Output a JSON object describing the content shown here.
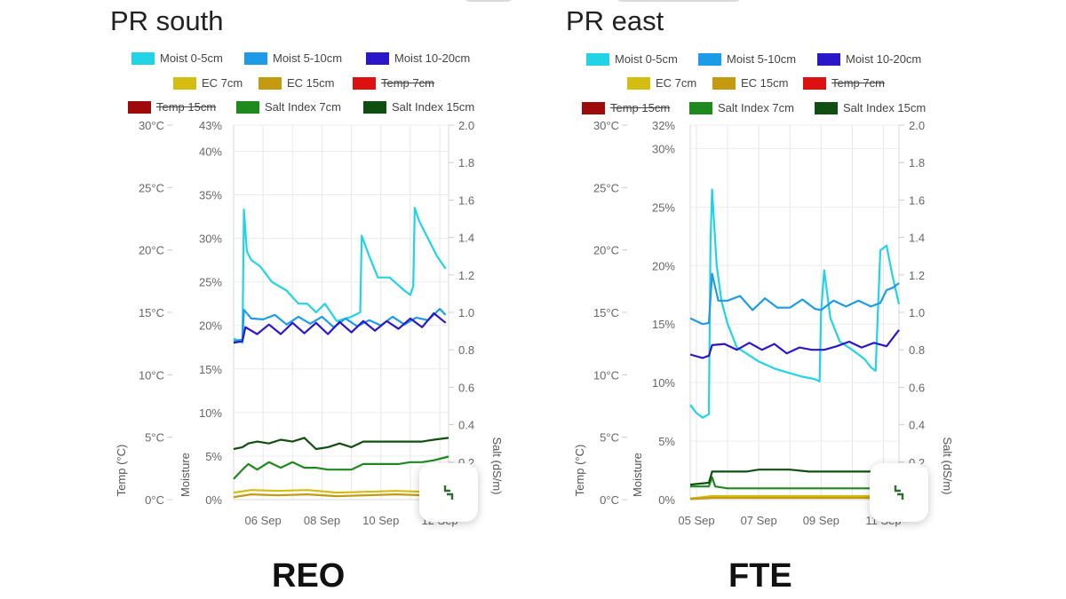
{
  "charts": [
    {
      "title": "PR south",
      "caption": "REO",
      "legend": [
        {
          "label": "Moist 0-5cm",
          "color": "#22d3e6",
          "hidden": false
        },
        {
          "label": "Moist 5-10cm",
          "color": "#1e9be6",
          "hidden": false
        },
        {
          "label": "Moist 10-20cm",
          "color": "#2a18c8",
          "hidden": false
        },
        {
          "label": "EC 7cm",
          "color": "#d4bc10",
          "hidden": false
        },
        {
          "label": "EC 15cm",
          "color": "#c49a10",
          "hidden": false
        },
        {
          "label": "Temp 7cm",
          "color": "#dd1111",
          "hidden": true
        },
        {
          "label": "Temp 15cm",
          "color": "#9e0a0a",
          "hidden": true
        },
        {
          "label": "Salt Index 7cm",
          "color": "#1e8a1e",
          "hidden": false
        },
        {
          "label": "Salt Index 15cm",
          "color": "#0f4f0f",
          "hidden": false
        }
      ],
      "temp_ticks": [
        "30°C",
        "25°C",
        "20°C",
        "15°C",
        "10°C",
        "5°C",
        "0°C"
      ],
      "moist_ticks": [
        "43%",
        "40%",
        "35%",
        "30%",
        "25%",
        "20%",
        "15%",
        "10%",
        "5%",
        "0%"
      ],
      "salt_ticks": [
        "2.0",
        "1.8",
        "1.6",
        "1.4",
        "1.2",
        "1.0",
        "0.8",
        "0.6",
        "0.4",
        "0.2"
      ],
      "x_ticks": [
        "06 Sep",
        "08 Sep",
        "10 Sep",
        "12 Sep"
      ],
      "axis_titles": {
        "temp": "Temp (°C)",
        "moist": "Moisture",
        "salt": "Salt (dS/m)"
      }
    },
    {
      "title": "PR east",
      "caption": "FTE",
      "legend": [
        {
          "label": "Moist 0-5cm",
          "color": "#22d3e6",
          "hidden": false
        },
        {
          "label": "Moist 5-10cm",
          "color": "#1e9be6",
          "hidden": false
        },
        {
          "label": "Moist 10-20cm",
          "color": "#2a18c8",
          "hidden": false
        },
        {
          "label": "EC 7cm",
          "color": "#d4bc10",
          "hidden": false
        },
        {
          "label": "EC 15cm",
          "color": "#c49a10",
          "hidden": false
        },
        {
          "label": "Temp 7cm",
          "color": "#dd1111",
          "hidden": true
        },
        {
          "label": "Temp 15cm",
          "color": "#9e0a0a",
          "hidden": true
        },
        {
          "label": "Salt Index 7cm",
          "color": "#1e8a1e",
          "hidden": false
        },
        {
          "label": "Salt Index 15cm",
          "color": "#0f4f0f",
          "hidden": false
        }
      ],
      "temp_ticks": [
        "30°C",
        "25°C",
        "20°C",
        "15°C",
        "10°C",
        "5°C",
        "0°C"
      ],
      "moist_ticks": [
        "32%",
        "30%",
        "25%",
        "20%",
        "15%",
        "10%",
        "5%",
        "0%"
      ],
      "salt_ticks": [
        "2.0",
        "1.8",
        "1.6",
        "1.4",
        "1.2",
        "1.0",
        "0.8",
        "0.6",
        "0.4",
        "0.2"
      ],
      "x_ticks": [
        "05 Sep",
        "07 Sep",
        "09 Sep",
        "11 Sep"
      ],
      "axis_titles": {
        "temp": "Temp (°C)",
        "moist": "Moisture",
        "salt": "Salt (dS/m)"
      }
    }
  ],
  "chart_data": [
    {
      "type": "line",
      "title": "PR south",
      "y_left_temp": {
        "label": "Temp (°C)",
        "range": [
          0,
          30
        ]
      },
      "y_left_moist": {
        "label": "Moisture",
        "range": [
          0,
          43
        ]
      },
      "y_right": {
        "label": "Salt (dS/m)",
        "range": [
          0,
          2.0
        ]
      },
      "x_range_days": [
        5.0,
        12.3
      ],
      "series": [
        {
          "name": "Moist 0-5cm",
          "axis": "moist",
          "color": "#22d3e6",
          "x": [
            5.0,
            5.3,
            5.35,
            5.45,
            5.6,
            5.9,
            6.3,
            6.8,
            7.2,
            7.5,
            7.8,
            8.1,
            8.5,
            9.0,
            9.3,
            9.35,
            9.6,
            9.9,
            10.3,
            10.8,
            11.0,
            11.1,
            11.15,
            11.3,
            11.6,
            11.9,
            12.2
          ],
          "y": [
            18.5,
            18.0,
            33.3,
            28.5,
            27.5,
            26.8,
            25.0,
            24.0,
            22.5,
            22.5,
            21.5,
            22.5,
            20.5,
            21.0,
            21.5,
            30.3,
            28.0,
            25.5,
            25.5,
            24.0,
            23.5,
            24.5,
            33.5,
            32.0,
            30.0,
            28.0,
            26.5
          ]
        },
        {
          "name": "Moist 5-10cm",
          "axis": "moist",
          "color": "#1e9be6",
          "x": [
            5.0,
            5.3,
            5.35,
            5.6,
            6.0,
            6.4,
            6.8,
            7.2,
            7.6,
            8.0,
            8.4,
            8.8,
            9.2,
            9.6,
            10.0,
            10.4,
            10.8,
            11.2,
            11.6,
            12.0,
            12.2
          ],
          "y": [
            18.2,
            18.4,
            21.8,
            20.8,
            20.7,
            21.2,
            20.1,
            21.0,
            20.2,
            21.0,
            19.8,
            20.8,
            19.9,
            20.6,
            20.0,
            21.0,
            20.1,
            20.9,
            20.6,
            21.9,
            21.2
          ]
        },
        {
          "name": "Moist 10-20cm",
          "axis": "moist",
          "color": "#2a18c8",
          "x": [
            5.0,
            5.3,
            5.4,
            5.8,
            6.2,
            6.6,
            7.0,
            7.4,
            7.8,
            8.2,
            8.6,
            9.0,
            9.4,
            9.8,
            10.2,
            10.6,
            11.0,
            11.4,
            11.8,
            12.2
          ],
          "y": [
            18.0,
            18.2,
            19.8,
            19.0,
            20.1,
            19.0,
            20.3,
            19.1,
            20.3,
            19.0,
            20.4,
            19.2,
            20.5,
            19.4,
            20.5,
            19.6,
            20.8,
            19.8,
            21.4,
            20.3
          ]
        },
        {
          "name": "EC 7cm",
          "axis": "moist",
          "color": "#d4bc10",
          "x": [
            5.0,
            5.6,
            6.5,
            7.5,
            8.5,
            9.5,
            10.5,
            11.5,
            12.3
          ],
          "y": [
            0.8,
            1.1,
            1.0,
            1.1,
            0.8,
            0.9,
            1.0,
            0.9,
            1.1
          ]
        },
        {
          "name": "EC 15cm",
          "axis": "moist",
          "color": "#c49a10",
          "x": [
            5.0,
            5.6,
            6.5,
            7.5,
            8.5,
            9.5,
            10.5,
            11.5,
            12.3
          ],
          "y": [
            0.3,
            0.6,
            0.5,
            0.6,
            0.4,
            0.5,
            0.6,
            0.5,
            0.6
          ]
        },
        {
          "name": "Salt Index 7cm",
          "axis": "salt",
          "color": "#1e8a1e",
          "x": [
            5.0,
            5.3,
            5.5,
            5.8,
            6.2,
            6.6,
            7.0,
            7.4,
            7.8,
            8.2,
            8.6,
            9.0,
            9.4,
            9.8,
            10.2,
            10.6,
            11.0,
            11.4,
            11.8,
            12.3
          ],
          "y": [
            0.11,
            0.16,
            0.19,
            0.16,
            0.2,
            0.17,
            0.2,
            0.17,
            0.17,
            0.16,
            0.16,
            0.16,
            0.19,
            0.19,
            0.19,
            0.19,
            0.2,
            0.2,
            0.21,
            0.23
          ]
        },
        {
          "name": "Salt Index 15cm",
          "axis": "salt",
          "color": "#0f4f0f",
          "x": [
            5.0,
            5.3,
            5.5,
            5.8,
            6.2,
            6.6,
            7.0,
            7.4,
            7.8,
            8.2,
            8.6,
            9.0,
            9.4,
            9.8,
            10.2,
            10.6,
            11.0,
            11.4,
            11.8,
            12.3
          ],
          "y": [
            0.27,
            0.28,
            0.3,
            0.31,
            0.3,
            0.32,
            0.31,
            0.33,
            0.27,
            0.28,
            0.3,
            0.28,
            0.31,
            0.31,
            0.31,
            0.31,
            0.31,
            0.31,
            0.32,
            0.33
          ]
        }
      ],
      "x_ticks": [
        {
          "label": "06 Sep",
          "value": 6.0
        },
        {
          "label": "08 Sep",
          "value": 8.0
        },
        {
          "label": "10 Sep",
          "value": 10.0
        },
        {
          "label": "12 Sep",
          "value": 12.0
        }
      ]
    },
    {
      "type": "line",
      "title": "PR east",
      "y_left_temp": {
        "label": "Temp (°C)",
        "range": [
          0,
          30
        ]
      },
      "y_left_moist": {
        "label": "Moisture",
        "range": [
          0,
          32
        ]
      },
      "y_right": {
        "label": "Salt (dS/m)",
        "range": [
          0,
          2.0
        ]
      },
      "x_range_days": [
        4.8,
        11.5
      ],
      "series": [
        {
          "name": "Moist 0-5cm",
          "axis": "moist",
          "color": "#22d3e6",
          "x": [
            4.8,
            5.0,
            5.2,
            5.4,
            5.45,
            5.5,
            5.65,
            5.8,
            6.0,
            6.3,
            6.6,
            7.0,
            7.5,
            8.0,
            8.4,
            8.8,
            8.95,
            9.0,
            9.1,
            9.3,
            9.6,
            10.0,
            10.4,
            10.6,
            10.75,
            10.9,
            11.1,
            11.3,
            11.5
          ],
          "y": [
            8.1,
            7.4,
            7.0,
            7.3,
            22.0,
            26.5,
            20.0,
            17.0,
            15.0,
            13.0,
            12.5,
            11.8,
            11.2,
            10.8,
            10.5,
            10.3,
            10.1,
            16.0,
            19.6,
            15.5,
            13.5,
            12.8,
            12.0,
            11.3,
            11.0,
            21.3,
            21.7,
            19.0,
            16.7
          ]
        },
        {
          "name": "Moist 5-10cm",
          "axis": "moist",
          "color": "#1e9be6",
          "x": [
            4.8,
            5.2,
            5.4,
            5.5,
            5.7,
            6.0,
            6.4,
            6.8,
            7.2,
            7.6,
            8.0,
            8.4,
            8.8,
            9.0,
            9.4,
            9.8,
            10.2,
            10.6,
            10.9,
            11.1,
            11.3,
            11.5
          ],
          "y": [
            15.5,
            15.0,
            15.1,
            19.3,
            17.0,
            17.0,
            17.4,
            16.2,
            17.2,
            16.4,
            16.4,
            17.1,
            16.3,
            16.2,
            17.0,
            16.5,
            17.0,
            16.5,
            16.8,
            17.9,
            18.1,
            18.5
          ]
        },
        {
          "name": "Moist 10-20cm",
          "axis": "moist",
          "color": "#2a18c8",
          "x": [
            4.8,
            5.2,
            5.4,
            5.5,
            5.9,
            6.3,
            6.7,
            7.1,
            7.5,
            7.9,
            8.3,
            8.7,
            9.1,
            9.5,
            9.9,
            10.3,
            10.7,
            11.1,
            11.5
          ],
          "y": [
            12.4,
            12.1,
            12.3,
            13.2,
            13.3,
            12.8,
            13.4,
            12.8,
            13.3,
            12.5,
            13.0,
            12.8,
            12.8,
            13.1,
            13.5,
            13.0,
            13.4,
            13.1,
            14.5
          ]
        },
        {
          "name": "EC 7cm",
          "axis": "moist",
          "color": "#d4bc10",
          "x": [
            4.8,
            5.5,
            6.5,
            7.5,
            8.5,
            9.5,
            10.5,
            11.5
          ],
          "y": [
            0.1,
            0.3,
            0.3,
            0.3,
            0.3,
            0.3,
            0.3,
            0.3
          ]
        },
        {
          "name": "EC 15cm",
          "axis": "moist",
          "color": "#c49a10",
          "x": [
            4.8,
            5.5,
            6.5,
            7.5,
            8.5,
            9.5,
            10.5,
            11.5
          ],
          "y": [
            0.05,
            0.15,
            0.15,
            0.15,
            0.15,
            0.15,
            0.15,
            0.15
          ]
        },
        {
          "name": "Salt Index 7cm",
          "axis": "salt",
          "color": "#1e8a1e",
          "x": [
            4.8,
            5.4,
            5.5,
            5.6,
            6.0,
            7.0,
            8.0,
            9.0,
            10.0,
            11.0,
            11.5
          ],
          "y": [
            0.07,
            0.07,
            0.12,
            0.07,
            0.06,
            0.06,
            0.06,
            0.06,
            0.06,
            0.06,
            0.06
          ]
        },
        {
          "name": "Salt Index 15cm",
          "axis": "salt",
          "color": "#0f4f0f",
          "x": [
            4.8,
            5.4,
            5.5,
            6.2,
            6.6,
            7.0,
            7.6,
            8.0,
            8.6,
            9.0,
            9.6,
            10.0,
            11.0,
            11.5
          ],
          "y": [
            0.08,
            0.09,
            0.15,
            0.15,
            0.15,
            0.16,
            0.16,
            0.16,
            0.15,
            0.15,
            0.15,
            0.15,
            0.15,
            0.15
          ]
        }
      ],
      "x_ticks": [
        {
          "label": "05 Sep",
          "value": 5.0
        },
        {
          "label": "07 Sep",
          "value": 7.0
        },
        {
          "label": "09 Sep",
          "value": 9.0
        },
        {
          "label": "11 Sep",
          "value": 11.0
        }
      ]
    }
  ]
}
